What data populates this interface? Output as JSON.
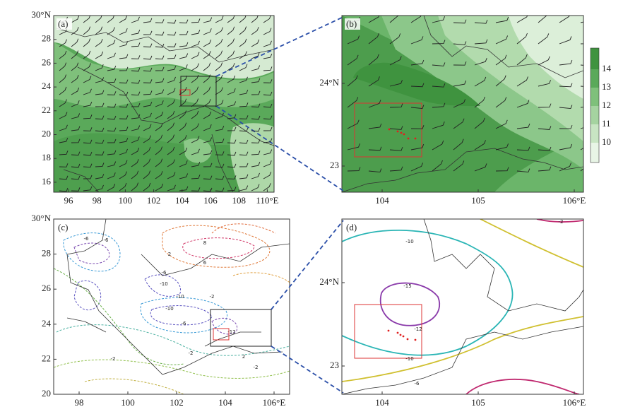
{
  "panels": [
    {
      "label": "(a)",
      "xticks": [
        "96",
        "98",
        "100",
        "102",
        "104",
        "106",
        "108",
        "110°E"
      ],
      "yticks": [
        "30°N",
        "28",
        "26",
        "24",
        "22",
        "20",
        "18",
        "16"
      ]
    },
    {
      "label": "(b)",
      "xticks": [
        "104",
        "105",
        "106°E"
      ],
      "yticks": [
        "24°N",
        "23"
      ]
    },
    {
      "label": "(c)",
      "xticks": [
        "98",
        "100",
        "102",
        "104",
        "106°E"
      ],
      "yticks": [
        "30°N",
        "28",
        "26",
        "24",
        "22",
        "20"
      ],
      "contour_labels": [
        "-6",
        "-6",
        "-10",
        "-10",
        "-10",
        "-6",
        "-2",
        "2",
        "6",
        "8",
        "-2",
        "2",
        "-2",
        "-12",
        "-2",
        "-6"
      ]
    },
    {
      "label": "(d)",
      "xticks": [
        "104",
        "105",
        "106°E"
      ],
      "yticks": [
        "24°N",
        "23"
      ],
      "contour_labels": [
        "-10",
        "-15",
        "-12",
        "-10",
        "-2",
        "-6"
      ]
    }
  ],
  "colorbar": {
    "ticks": [
      "14",
      "13",
      "12",
      "11",
      "10"
    ]
  }
}
